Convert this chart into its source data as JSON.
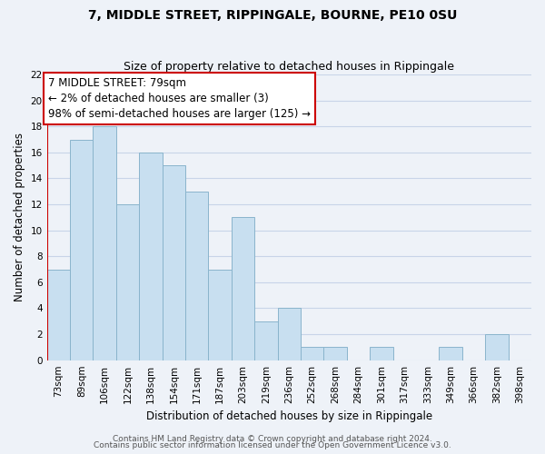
{
  "title": "7, MIDDLE STREET, RIPPINGALE, BOURNE, PE10 0SU",
  "subtitle": "Size of property relative to detached houses in Rippingale",
  "xlabel": "Distribution of detached houses by size in Rippingale",
  "ylabel": "Number of detached properties",
  "bar_color": "#c8dff0",
  "bar_edge_color": "#8ab4cc",
  "categories": [
    "73sqm",
    "89sqm",
    "106sqm",
    "122sqm",
    "138sqm",
    "154sqm",
    "171sqm",
    "187sqm",
    "203sqm",
    "219sqm",
    "236sqm",
    "252sqm",
    "268sqm",
    "284sqm",
    "301sqm",
    "317sqm",
    "333sqm",
    "349sqm",
    "366sqm",
    "382sqm",
    "398sqm"
  ],
  "values": [
    7,
    17,
    18,
    12,
    16,
    15,
    13,
    7,
    11,
    3,
    4,
    1,
    1,
    0,
    1,
    0,
    0,
    1,
    0,
    2,
    0
  ],
  "ylim": [
    0,
    22
  ],
  "yticks": [
    0,
    2,
    4,
    6,
    8,
    10,
    12,
    14,
    16,
    18,
    20,
    22
  ],
  "annotation_line1": "7 MIDDLE STREET: 79sqm",
  "annotation_line2": "← 2% of detached houses are smaller (3)",
  "annotation_line3": "98% of semi-detached houses are larger (125) →",
  "red_box_color": "#cc0000",
  "grid_color": "#c8d4e8",
  "background_color": "#eef2f8",
  "footer_line1": "Contains HM Land Registry data © Crown copyright and database right 2024.",
  "footer_line2": "Contains public sector information licensed under the Open Government Licence v3.0.",
  "title_fontsize": 10,
  "subtitle_fontsize": 9,
  "annotation_fontsize": 8.5,
  "axis_label_fontsize": 8.5,
  "tick_fontsize": 7.5,
  "footer_fontsize": 6.5
}
